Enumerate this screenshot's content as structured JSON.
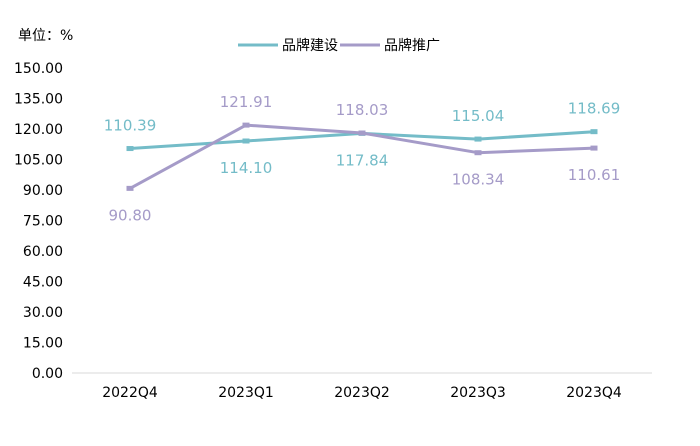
{
  "chart_data": {
    "type": "line",
    "unit_label": "单位：%",
    "categories": [
      "2022Q4",
      "2023Q1",
      "2023Q2",
      "2023Q3",
      "2023Q4"
    ],
    "ylim": [
      0,
      150
    ],
    "yticks": [
      "0.00",
      "15.00",
      "30.00",
      "45.00",
      "60.00",
      "75.00",
      "90.00",
      "105.00",
      "120.00",
      "135.00",
      "150.00"
    ],
    "grid": false,
    "legend_position": "top-center",
    "series": [
      {
        "name": "品牌建设",
        "color": "#74BCC8",
        "values": [
          110.39,
          114.1,
          117.84,
          115.04,
          118.69
        ],
        "labels": [
          "110.39",
          "114.10",
          "117.84",
          "115.04",
          "118.69"
        ]
      },
      {
        "name": "品牌推广",
        "color": "#A59BC8",
        "values": [
          90.8,
          121.91,
          118.03,
          108.34,
          110.61
        ],
        "labels": [
          "90.80",
          "121.91",
          "118.03",
          "108.34",
          "110.61"
        ]
      }
    ]
  }
}
